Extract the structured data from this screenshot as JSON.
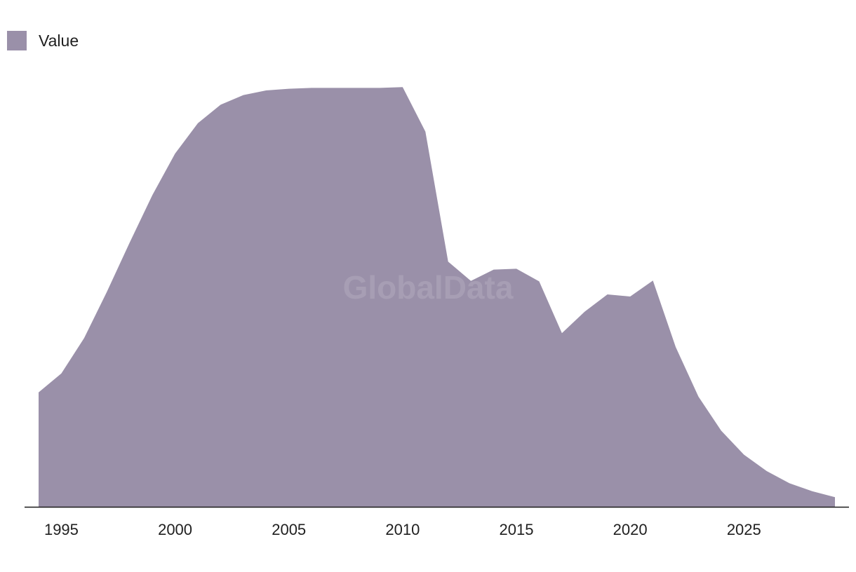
{
  "legend": {
    "label": "Value"
  },
  "watermark": "GlobalData",
  "colors": {
    "area": "#9a90a9",
    "axis": "#1a1a1a",
    "text": "#1f1f1f"
  },
  "chart_data": {
    "type": "area",
    "title": "",
    "xlabel": "",
    "ylabel": "",
    "legend_position": "top-left",
    "grid": false,
    "xlim": [
      1994,
      2029
    ],
    "ylim": [
      0,
      100
    ],
    "x_ticks": [
      1995,
      2000,
      2005,
      2010,
      2015,
      2020,
      2025
    ],
    "x_tick_labels": [
      "1995",
      "2000",
      "2005",
      "2010",
      "2015",
      "2020",
      "2025"
    ],
    "series": [
      {
        "name": "Value",
        "x": [
          1994,
          1995,
          1996,
          1997,
          1998,
          1999,
          2000,
          2001,
          2002,
          2003,
          2004,
          2005,
          2006,
          2007,
          2008,
          2009,
          2010,
          2011,
          2012,
          2013,
          2014,
          2015,
          2016,
          2017,
          2018,
          2019,
          2020,
          2021,
          2022,
          2023,
          2024,
          2025,
          2026,
          2027,
          2028,
          2029
        ],
        "values": [
          27.2,
          31.7,
          40.1,
          51.1,
          62.8,
          74.1,
          84.0,
          91.2,
          95.6,
          97.9,
          99.0,
          99.4,
          99.6,
          99.6,
          99.6,
          99.6,
          99.8,
          89.2,
          58.3,
          53.7,
          56.4,
          56.6,
          53.6,
          41.3,
          46.4,
          50.5,
          50.0,
          53.8,
          38.0,
          26.2,
          18.1,
          12.4,
          8.5,
          5.6,
          3.7,
          2.3
        ]
      }
    ]
  }
}
